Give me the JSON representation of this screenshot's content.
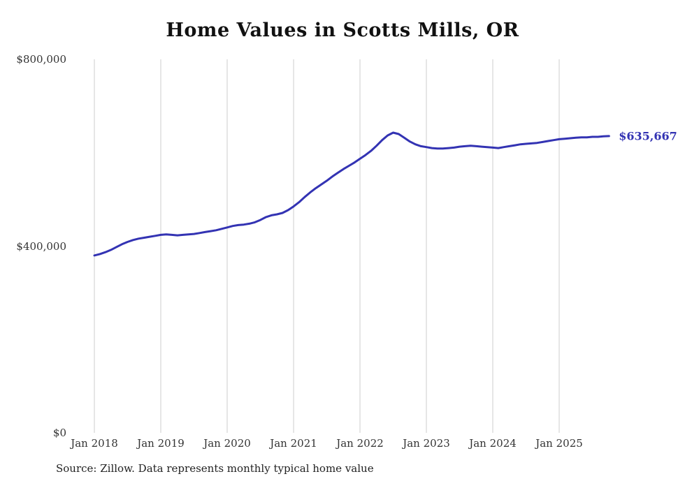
{
  "source_note": "Source: Zillow. Data represents monthly typical home value",
  "colors": {
    "line": "#3333b3",
    "value_label": "#3333b3",
    "gridline": "#cccccc",
    "title_text": "#111111",
    "axis_text": "#333333"
  },
  "chart_data": {
    "type": "line",
    "title": "Home Values in Scotts Mills, OR",
    "xlabel": "",
    "ylabel": "",
    "ylim": [
      0,
      800000
    ],
    "grid": "vertical-only",
    "legend": "none",
    "x_unit": "month",
    "x_start": "2018-01",
    "x_end": "2025-10",
    "last_value": 635667,
    "last_value_label": "$635,667",
    "y_ticks": [
      {
        "label": "$0",
        "value": 0
      },
      {
        "label": "$400,000",
        "value": 400000
      },
      {
        "label": "$800,000",
        "value": 800000
      }
    ],
    "x_ticks": [
      {
        "label": "Jan 2018",
        "month_index": 0
      },
      {
        "label": "Jan 2019",
        "month_index": 12
      },
      {
        "label": "Jan 2020",
        "month_index": 24
      },
      {
        "label": "Jan 2021",
        "month_index": 36
      },
      {
        "label": "Jan 2022",
        "month_index": 48
      },
      {
        "label": "Jan 2023",
        "month_index": 60
      },
      {
        "label": "Jan 2024",
        "month_index": 72
      },
      {
        "label": "Jan 2025",
        "month_index": 84
      }
    ],
    "series": [
      {
        "name": "Typical home value",
        "values": [
          380000,
          383000,
          387000,
          392000,
          398000,
          404000,
          409000,
          413000,
          416000,
          418000,
          420000,
          422000,
          424000,
          425000,
          424000,
          423000,
          424000,
          425000,
          426000,
          428000,
          430000,
          432000,
          434000,
          437000,
          440000,
          443000,
          445000,
          446000,
          448000,
          451000,
          456000,
          462000,
          466000,
          468000,
          471000,
          477000,
          485000,
          494000,
          505000,
          515000,
          524000,
          532000,
          540000,
          549000,
          557000,
          565000,
          572000,
          579000,
          587000,
          595000,
          604000,
          615000,
          627000,
          637000,
          643000,
          640000,
          632000,
          624000,
          618000,
          614000,
          612000,
          610000,
          609000,
          609000,
          610000,
          611000,
          613000,
          614000,
          615000,
          614000,
          613000,
          612000,
          611000,
          610000,
          612000,
          614000,
          616000,
          618000,
          619000,
          620000,
          621000,
          623000,
          625000,
          627000,
          629000,
          630000,
          631000,
          632000,
          633000,
          633000,
          634000,
          634000,
          635000,
          635667
        ]
      }
    ]
  }
}
